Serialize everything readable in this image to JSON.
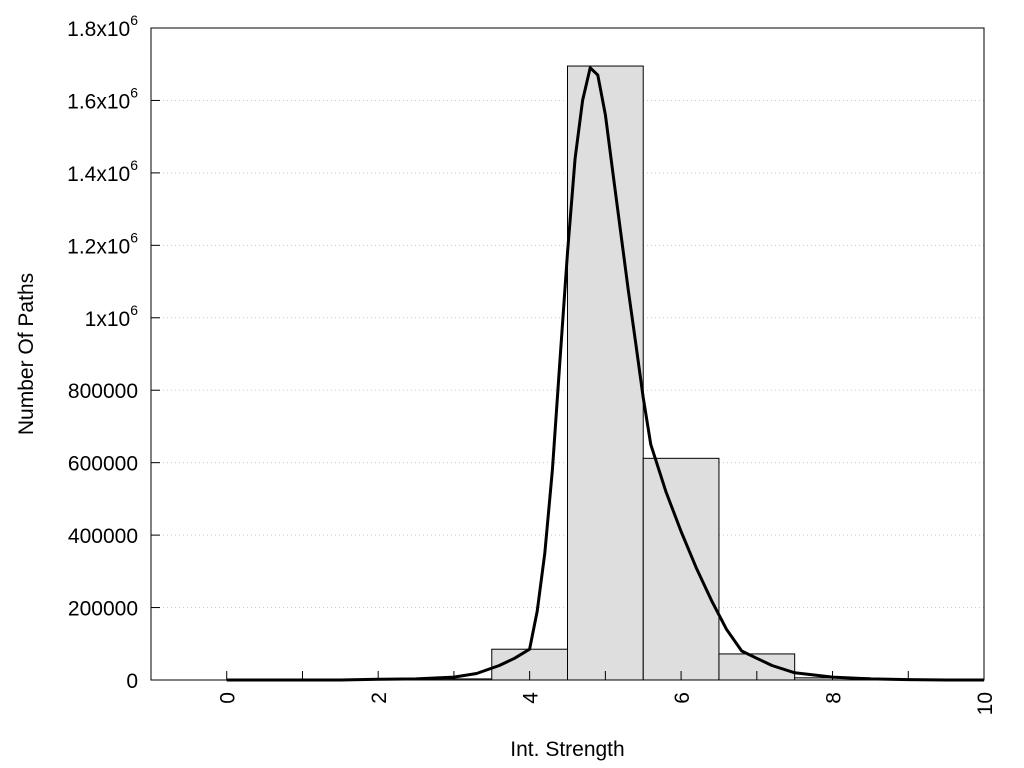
{
  "chart_data": {
    "type": "bar",
    "xlabel": "Int. Strength",
    "ylabel": "Number Of Paths",
    "xlim": [
      -1,
      10
    ],
    "ylim": [
      0,
      1800000
    ],
    "grid": "horizontal-dotted",
    "x_ticks": [
      {
        "value": 0,
        "label": "0"
      },
      {
        "value": 2,
        "label": "2"
      },
      {
        "value": 4,
        "label": "4"
      },
      {
        "value": 6,
        "label": "6"
      },
      {
        "value": 8,
        "label": "8"
      },
      {
        "value": 10,
        "label": "10"
      }
    ],
    "y_ticks": [
      {
        "value": 0,
        "label": "0"
      },
      {
        "value": 200000,
        "label": "200000"
      },
      {
        "value": 400000,
        "label": "400000"
      },
      {
        "value": 600000,
        "label": "600000"
      },
      {
        "value": 800000,
        "label": "800000"
      },
      {
        "value": 1000000,
        "label": "1x10",
        "exp": "6"
      },
      {
        "value": 1200000,
        "label": "1.2x10",
        "exp": "6"
      },
      {
        "value": 1400000,
        "label": "1.4x10",
        "exp": "6"
      },
      {
        "value": 1600000,
        "label": "1.6x10",
        "exp": "6"
      },
      {
        "value": 1800000,
        "label": "1.8x10",
        "exp": "6"
      }
    ],
    "bars": [
      {
        "x": 0,
        "value": 0
      },
      {
        "x": 1,
        "value": 0
      },
      {
        "x": 2,
        "value": 0
      },
      {
        "x": 3,
        "value": 3000
      },
      {
        "x": 4,
        "value": 85000
      },
      {
        "x": 5,
        "value": 1695000
      },
      {
        "x": 6,
        "value": 612000
      },
      {
        "x": 7,
        "value": 72000
      },
      {
        "x": 8,
        "value": 6000
      },
      {
        "x": 9,
        "value": 0
      },
      {
        "x": 10,
        "value": 0
      }
    ],
    "bar_width": 1,
    "curve": {
      "x": [
        0,
        1,
        1.5,
        2,
        2.5,
        3,
        3.3,
        3.6,
        3.8,
        4,
        4.1,
        4.2,
        4.3,
        4.4,
        4.5,
        4.6,
        4.7,
        4.8,
        4.9,
        5,
        5.1,
        5.2,
        5.3,
        5.4,
        5.5,
        5.6,
        5.8,
        6,
        6.2,
        6.4,
        6.6,
        6.8,
        7,
        7.2,
        7.5,
        8,
        8.5,
        9,
        9.5,
        10
      ],
      "y": [
        0,
        0,
        0,
        2000,
        3000,
        8000,
        18000,
        40000,
        60000,
        85000,
        190000,
        350000,
        580000,
        880000,
        1180000,
        1440000,
        1600000,
        1690000,
        1670000,
        1560000,
        1400000,
        1240000,
        1080000,
        930000,
        780000,
        650000,
        520000,
        410000,
        310000,
        220000,
        140000,
        80000,
        60000,
        40000,
        20000,
        8000,
        3000,
        1000,
        0,
        0
      ]
    }
  }
}
